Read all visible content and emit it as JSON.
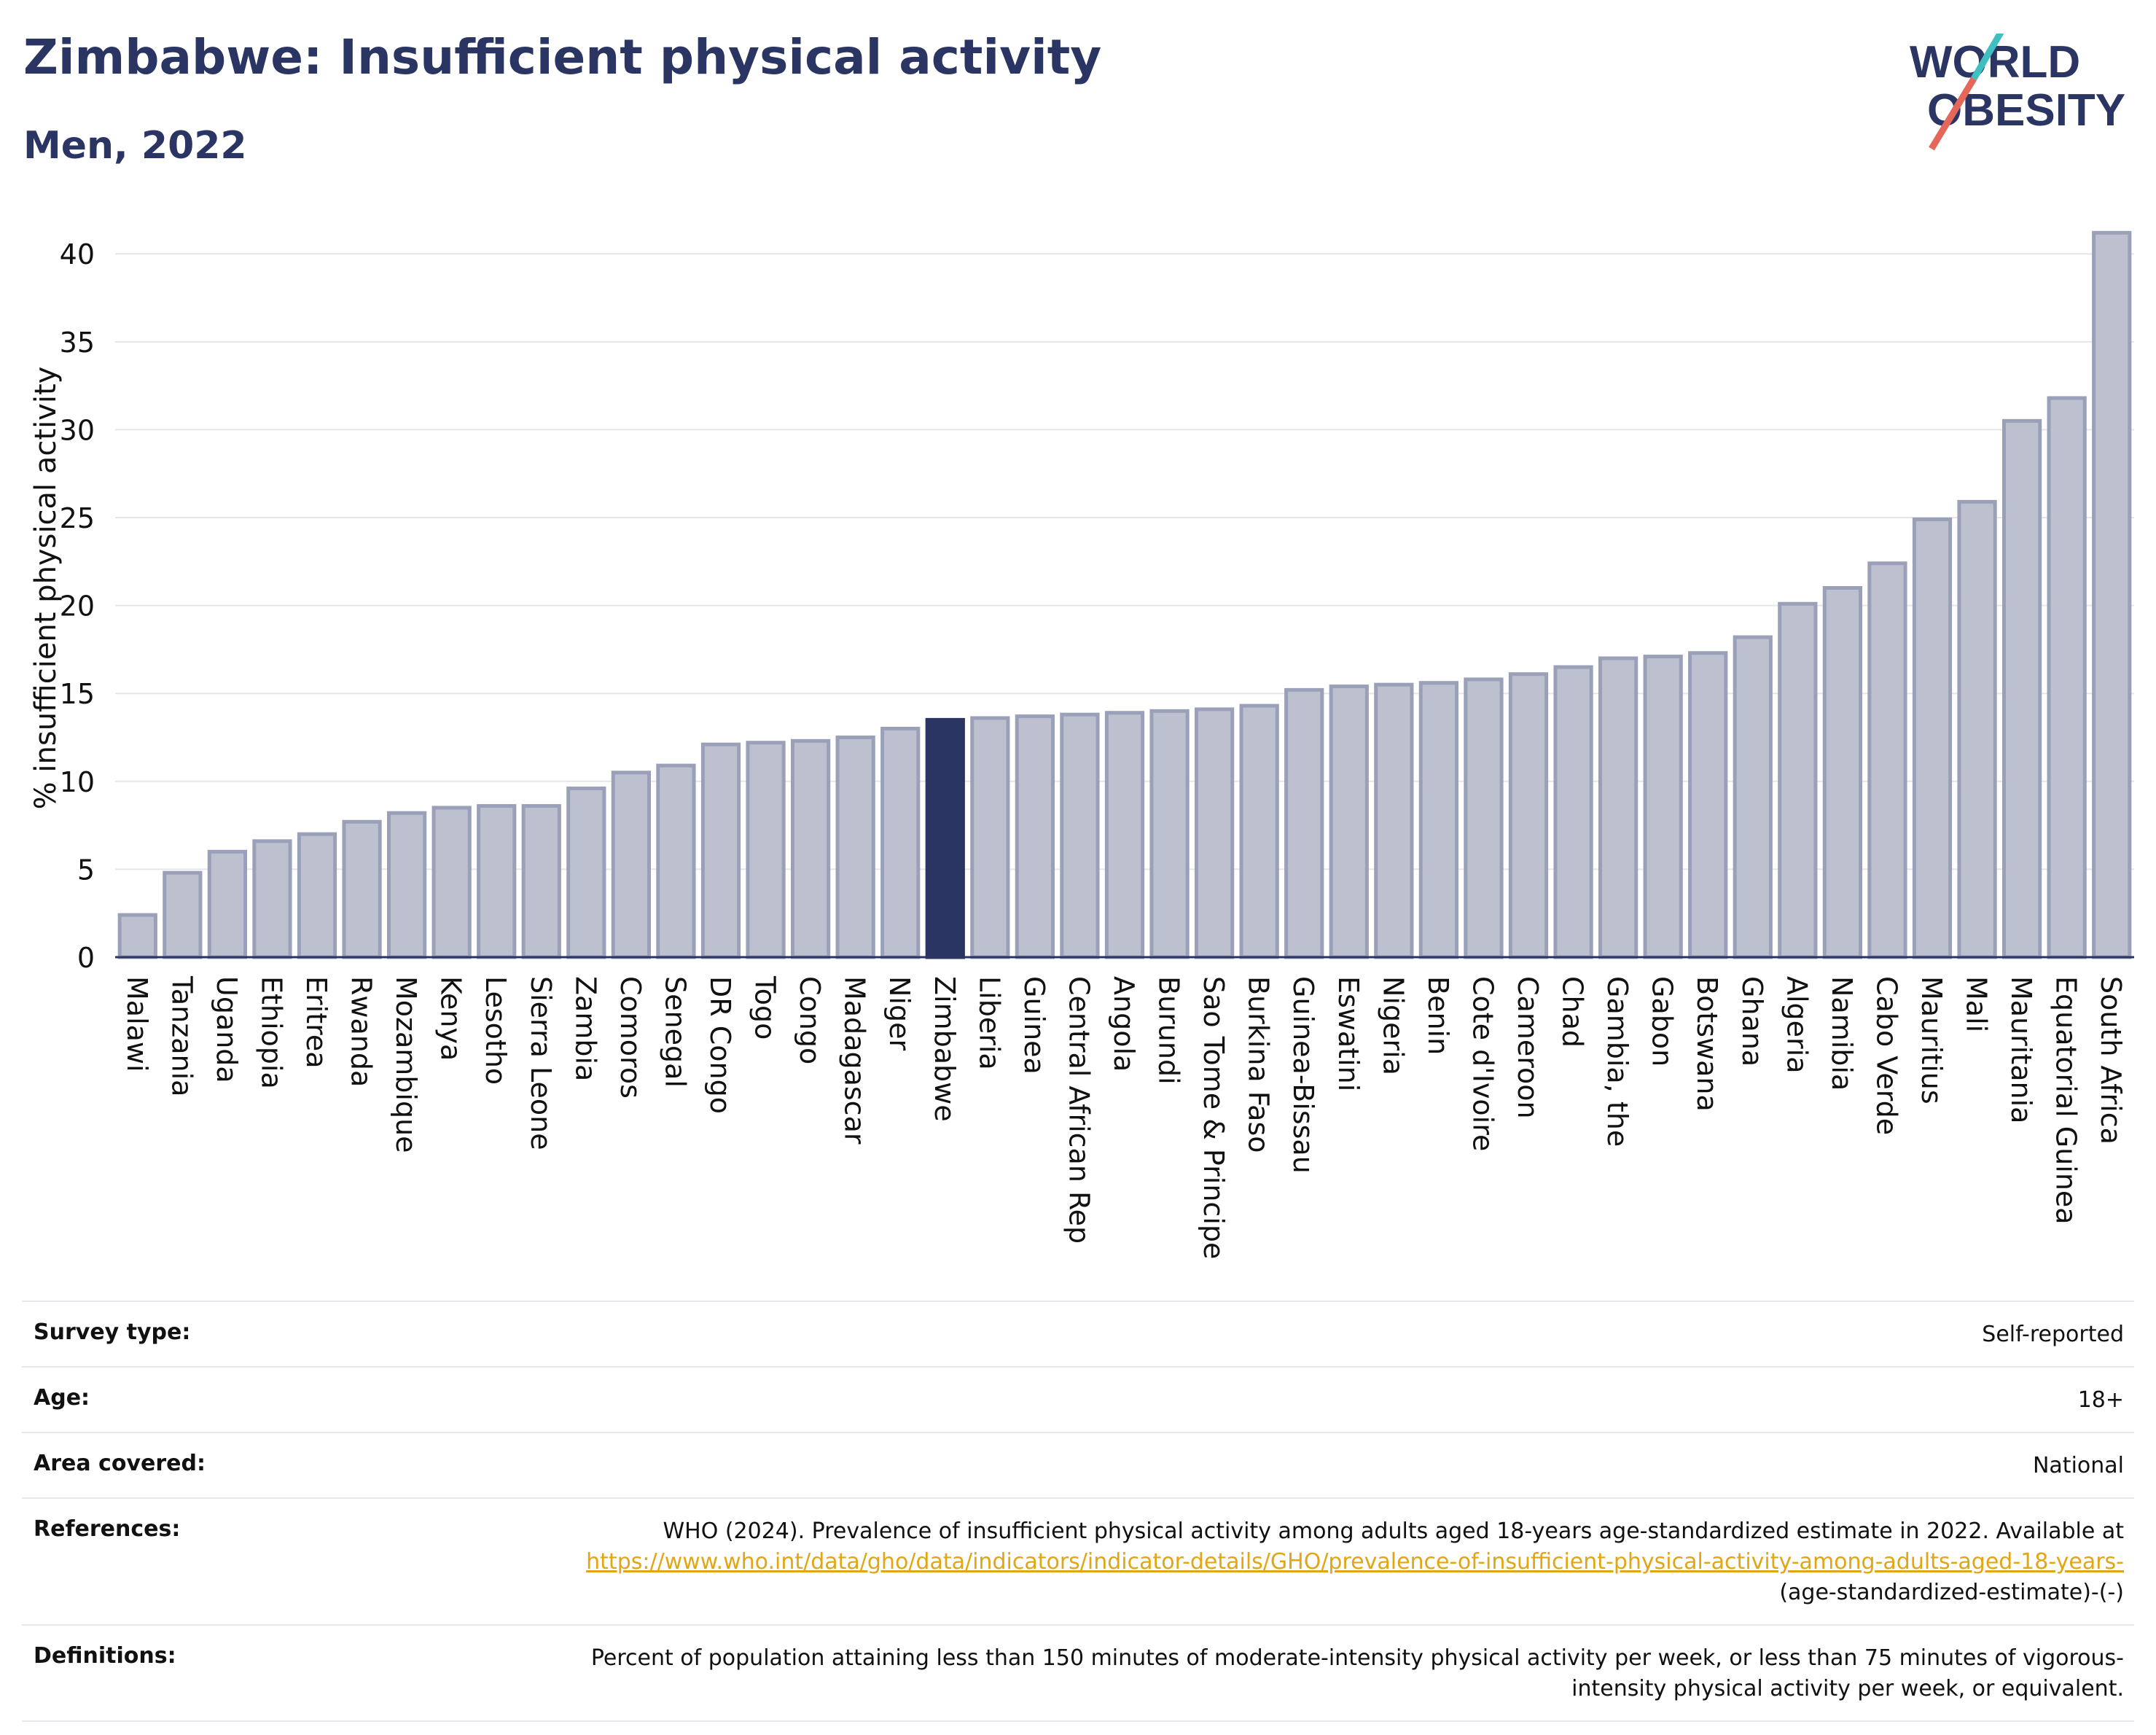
{
  "header": {
    "title": "Zimbabwe: Insufficient physical activity",
    "subtitle": "Men, 2022"
  },
  "logo": {
    "line1": "WORLD",
    "line2": "OBESITY",
    "colors": {
      "text": "#2b3563",
      "slash_teal": "#3fbfbf",
      "slash_red": "#e5665a"
    }
  },
  "chart_data": {
    "type": "bar",
    "ylabel": "% insufficient physical activity",
    "xlabel": "",
    "ylim": [
      0,
      42
    ],
    "yticks": [
      0,
      5,
      10,
      15,
      20,
      25,
      30,
      35,
      40
    ],
    "grid": true,
    "highlight": "Zimbabwe",
    "colors": {
      "bar": "#bcc0cf",
      "bar_border": "#9aa0b8",
      "highlight": "#2b3563",
      "grid": "#e4e6ec",
      "axis": "#2b3563"
    },
    "categories": [
      "Malawi",
      "Tanzania",
      "Uganda",
      "Ethiopia",
      "Eritrea",
      "Rwanda",
      "Mozambique",
      "Kenya",
      "Lesotho",
      "Sierra Leone",
      "Zambia",
      "Comoros",
      "Senegal",
      "DR Congo",
      "Togo",
      "Congo",
      "Madagascar",
      "Niger",
      "Zimbabwe",
      "Liberia",
      "Guinea",
      "Central African Rep",
      "Angola",
      "Burundi",
      "Sao Tome & Principe",
      "Burkina Faso",
      "Guinea-Bissau",
      "Eswatini",
      "Nigeria",
      "Benin",
      "Cote d'Ivoire",
      "Cameroon",
      "Chad",
      "Gambia, the",
      "Gabon",
      "Botswana",
      "Ghana",
      "Algeria",
      "Namibia",
      "Cabo Verde",
      "Mauritius",
      "Mali",
      "Mauritania",
      "Equatorial Guinea",
      "South Africa"
    ],
    "values": [
      2.4,
      4.8,
      6.0,
      6.6,
      7.0,
      7.7,
      8.2,
      8.5,
      8.6,
      8.6,
      9.6,
      10.5,
      10.9,
      12.1,
      12.2,
      12.3,
      12.5,
      13.0,
      13.5,
      13.6,
      13.7,
      13.8,
      13.9,
      14.0,
      14.1,
      14.3,
      15.2,
      15.4,
      15.5,
      15.6,
      15.8,
      16.1,
      16.5,
      17.0,
      17.1,
      17.3,
      18.2,
      20.1,
      21.0,
      22.4,
      24.9,
      25.9,
      30.5,
      31.8,
      41.2
    ]
  },
  "info": {
    "survey_type": {
      "label": "Survey type:",
      "value": "Self-reported"
    },
    "age": {
      "label": "Age:",
      "value": "18+"
    },
    "area": {
      "label": "Area covered:",
      "value": "National"
    },
    "references": {
      "label": "References:",
      "text": "WHO (2024). Prevalence of insufficient physical activity among adults aged 18-years age-standardized estimate in 2022. Available at",
      "link": "https://www.who.int/data/gho/data/indicators/indicator-details/GHO/prevalence-of-insufficient-physical-activity-among-adults-aged-18-years-",
      "suffix": "(age-standardized-estimate)-(-)"
    },
    "definitions": {
      "label": "Definitions:",
      "value": "Percent of population attaining less than 150 minutes of moderate-intensity physical activity per week, or less than 75 minutes of vigorous-intensity physical activity per week, or equivalent."
    }
  }
}
